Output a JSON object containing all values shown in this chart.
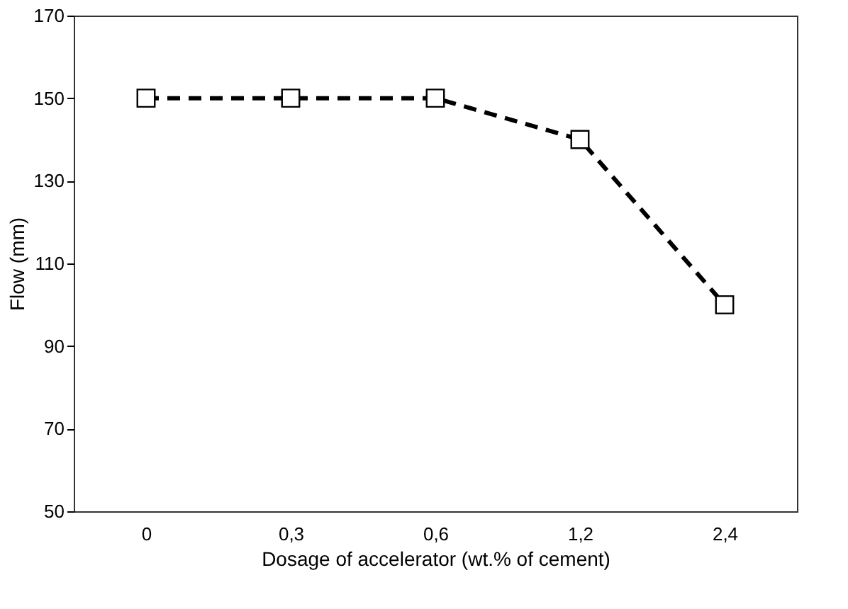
{
  "chart_data": {
    "type": "line",
    "xlabel": "Dosage of accelerator (wt.% of cement)",
    "ylabel": "Flow (mm)",
    "categories": [
      "0",
      "0,3",
      "0,6",
      "1,2",
      "2,4"
    ],
    "series": [
      {
        "color": "#000000",
        "values": [
          150,
          150,
          150,
          140,
          100
        ]
      }
    ],
    "ylim": [
      50,
      170
    ],
    "yticks": [
      50,
      70,
      90,
      110,
      130,
      150,
      170
    ],
    "grid": false,
    "marker": "square",
    "line_style": "dashed"
  }
}
